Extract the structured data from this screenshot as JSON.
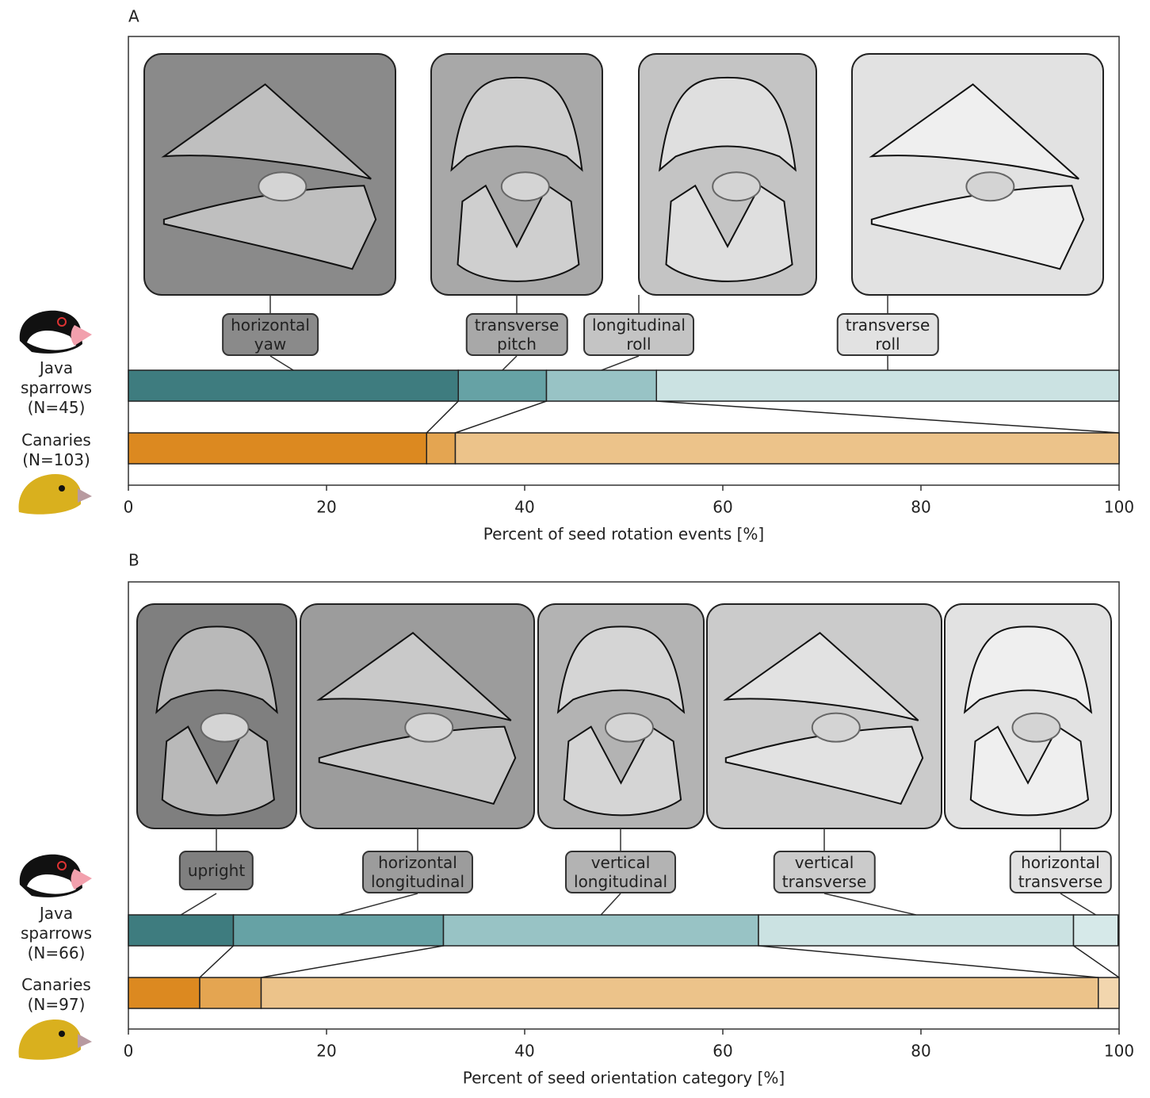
{
  "chart_data": [
    {
      "type": "stacked_barh",
      "panel": "A",
      "xlabel": "Percent of seed rotation events [%]",
      "categories": [
        "Java sparrows (N=45)",
        "Canaries (N=103)"
      ],
      "xlim": [
        0,
        100
      ],
      "xticks": [
        0,
        20,
        40,
        60,
        80,
        100
      ],
      "series": [
        {
          "name": "horizontal yaw",
          "colors": [
            "#3e7c7f",
            "#dc8920"
          ],
          "values": [
            33.3,
            30.1
          ]
        },
        {
          "name": "transverse pitch",
          "colors": [
            "#66a2a5",
            "#e4a551"
          ],
          "values": [
            8.9,
            2.9
          ]
        },
        {
          "name": "longitudinal roll",
          "colors": [
            "#98c3c5",
            "#ecc38a"
          ],
          "values": [
            11.1,
            67.0
          ]
        },
        {
          "name": "transverse roll",
          "colors": [
            "#cbe2e2",
            "#f2d6ae"
          ],
          "values": [
            46.7,
            0
          ]
        }
      ]
    },
    {
      "type": "stacked_barh",
      "panel": "B",
      "xlabel": "Percent of seed orientation category [%]",
      "categories": [
        "Java sparrows (N=66)",
        "Canaries (N=97)"
      ],
      "xlim": [
        0,
        100
      ],
      "xticks": [
        0,
        20,
        40,
        60,
        80,
        100
      ],
      "series": [
        {
          "name": "upright",
          "colors": [
            "#3e7c7f",
            "#dc8920"
          ],
          "values": [
            10.6,
            7.2
          ]
        },
        {
          "name": "horizontal longitudinal",
          "colors": [
            "#66a2a5",
            "#e4a551"
          ],
          "values": [
            21.2,
            6.2
          ]
        },
        {
          "name": "vertical longitudinal",
          "colors": [
            "#98c3c5",
            "#ecc38a"
          ],
          "values": [
            31.8,
            84.5
          ]
        },
        {
          "name": "vertical transverse",
          "colors": [
            "#cbe2e2",
            "#f2d6ae"
          ],
          "values": [
            31.8,
            2.1
          ]
        },
        {
          "name": "horizontal transverse",
          "colors": [
            "#d6e9e9",
            "#f2d6ae"
          ],
          "values": [
            4.5,
            0
          ]
        }
      ]
    }
  ]
}
